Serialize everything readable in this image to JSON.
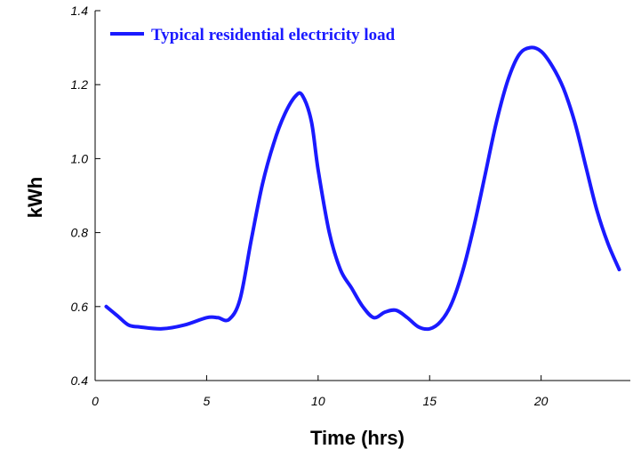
{
  "chart_data": {
    "type": "line",
    "xlabel": "Time (hrs)",
    "ylabel": "kWh",
    "xlim": [
      0,
      24
    ],
    "ylim": [
      0.4,
      1.4
    ],
    "x_ticks": [
      0,
      5,
      10,
      15,
      20
    ],
    "y_ticks": [
      0.4,
      0.6,
      0.8,
      1.0,
      1.2,
      1.4
    ],
    "x_tick_labels": [
      "0",
      "5",
      "10",
      "15",
      "20"
    ],
    "y_tick_labels": [
      "0.4",
      "0.6",
      "0.8",
      "1.0",
      "1.2",
      "1.4"
    ],
    "grid": false,
    "legend_position": "top-left",
    "series_color": "#1a1aff",
    "series": [
      {
        "name": "Typical residential electricity load",
        "x": [
          0.5,
          1.0,
          1.5,
          2.0,
          3.0,
          4.0,
          5.0,
          5.5,
          6.0,
          6.5,
          7.0,
          7.5,
          8.0,
          8.5,
          9.0,
          9.3,
          9.7,
          10.0,
          10.5,
          11.0,
          11.5,
          12.0,
          12.5,
          13.0,
          13.5,
          14.0,
          14.5,
          15.0,
          15.5,
          16.0,
          16.5,
          17.0,
          17.5,
          18.0,
          18.5,
          19.0,
          19.5,
          20.0,
          20.5,
          21.0,
          21.5,
          22.0,
          22.5,
          23.0,
          23.5
        ],
        "y": [
          0.6,
          0.575,
          0.55,
          0.545,
          0.54,
          0.55,
          0.57,
          0.57,
          0.565,
          0.62,
          0.78,
          0.93,
          1.04,
          1.12,
          1.17,
          1.17,
          1.1,
          0.97,
          0.8,
          0.7,
          0.65,
          0.6,
          0.57,
          0.585,
          0.59,
          0.57,
          0.545,
          0.54,
          0.56,
          0.61,
          0.7,
          0.82,
          0.96,
          1.1,
          1.21,
          1.28,
          1.3,
          1.29,
          1.25,
          1.19,
          1.1,
          0.98,
          0.86,
          0.77,
          0.7
        ]
      }
    ]
  }
}
